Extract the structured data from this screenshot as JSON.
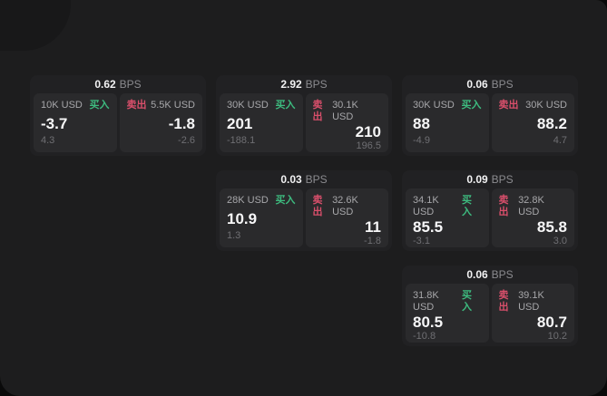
{
  "labels": {
    "bps": "BPS",
    "buy": "买入",
    "sell": "卖出"
  },
  "colors": {
    "backdrop": "#0a0a0a",
    "surface": "#1d1d1e",
    "card": "#212123",
    "panel": "#2a2a2c",
    "buy_green": "#3dbb7f",
    "sell_red": "#d94f6b",
    "price_white": "#f7f7f8",
    "muted_gray": "#6f6f73"
  },
  "cards": [
    {
      "bps": "0.62",
      "buy": {
        "amount": "10K USD",
        "price": "-3.7",
        "delta": "4.3"
      },
      "sell": {
        "amount": "5.5K USD",
        "price": "-1.8",
        "delta": "-2.6"
      }
    },
    {
      "bps": "2.92",
      "buy": {
        "amount": "30K USD",
        "price": "201",
        "delta": "-188.1"
      },
      "sell": {
        "amount": "30.1K USD",
        "price": "210",
        "delta": "196.5"
      }
    },
    {
      "bps": "0.06",
      "buy": {
        "amount": "30K USD",
        "price": "88",
        "delta": "-4.9"
      },
      "sell": {
        "amount": "30K USD",
        "price": "88.2",
        "delta": "4.7"
      }
    },
    {
      "bps": "0.03",
      "buy": {
        "amount": "28K USD",
        "price": "10.9",
        "delta": "1.3"
      },
      "sell": {
        "amount": "32.6K USD",
        "price": "11",
        "delta": "-1.8"
      }
    },
    {
      "bps": "0.09",
      "buy": {
        "amount": "34.1K USD",
        "price": "85.5",
        "delta": "-3.1"
      },
      "sell": {
        "amount": "32.8K USD",
        "price": "85.8",
        "delta": "3.0"
      }
    },
    {
      "bps": "0.06",
      "buy": {
        "amount": "31.8K USD",
        "price": "80.5",
        "delta": "-10.8"
      },
      "sell": {
        "amount": "39.1K USD",
        "price": "80.7",
        "delta": "10.2"
      }
    }
  ]
}
